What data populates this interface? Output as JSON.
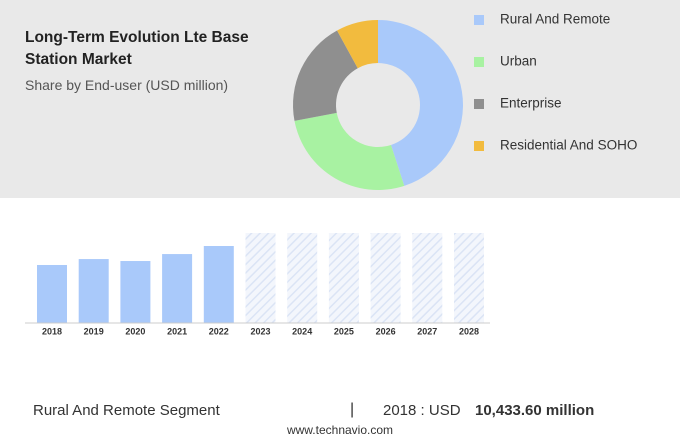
{
  "chart_data": [
    {
      "type": "donut",
      "title": "Long-Term Evolution Lte Base Station Market",
      "subtitle": "Share by End-user (USD million)",
      "categories": [
        "Rural And Remote",
        "Urban",
        "Enterprise",
        "Residential And SOHO"
      ],
      "values": [
        45,
        27,
        20,
        8
      ],
      "colors": [
        "#a9c9fa",
        "#a8f2a2",
        "#8f8f8f",
        "#f2bb3e"
      ]
    },
    {
      "type": "bar",
      "categories": [
        "2018",
        "2019",
        "2020",
        "2021",
        "2022",
        "2023",
        "2024",
        "2025",
        "2026",
        "2027",
        "2028"
      ],
      "values": [
        10433.6,
        11500,
        11150,
        12400,
        13850,
        null,
        null,
        null,
        null,
        null,
        null
      ],
      "color": "#a9c9fa"
    }
  ],
  "footer": {
    "segment": "Rural And Remote Segment",
    "separator": "|",
    "year": "2018 : USD",
    "value": "10,433.60 million",
    "source": "www.technavio.com"
  }
}
